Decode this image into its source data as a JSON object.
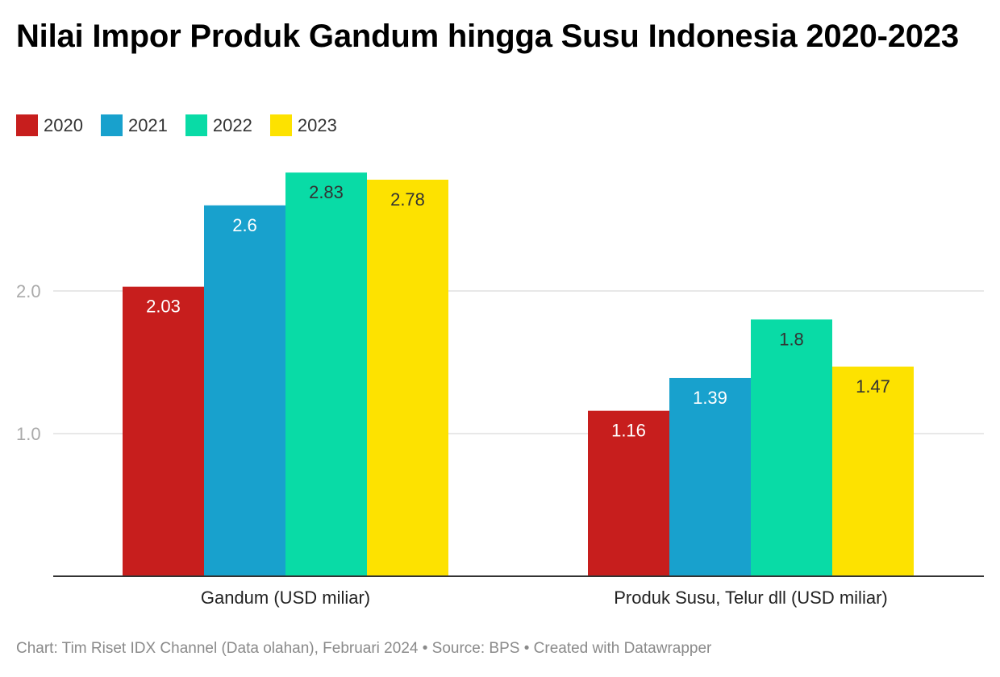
{
  "title": "Nilai Impor Produk Gandum hingga Susu Indonesia 2020-2023",
  "footer": "Chart: Tim Riset IDX Channel (Data olahan), Februari 2024 • Source: BPS • Created with Datawrapper",
  "colors": {
    "2020": "#c71e1d",
    "2021": "#18a1cd",
    "2022": "#09dba6",
    "2023": "#fde200",
    "gridline": "#e0e0e0",
    "baseline": "#333333",
    "tick_label": "#aaaaaa"
  },
  "chart_data": {
    "type": "bar",
    "categories": [
      "Gandum (USD miliar)",
      "Produk Susu, Telur dll (USD miliar)"
    ],
    "series": [
      {
        "name": "2020",
        "values": [
          2.03,
          1.16
        ],
        "color": "#c71e1d"
      },
      {
        "name": "2021",
        "values": [
          2.6,
          1.39
        ],
        "color": "#18a1cd"
      },
      {
        "name": "2022",
        "values": [
          2.83,
          1.8
        ],
        "color": "#09dba6"
      },
      {
        "name": "2023",
        "values": [
          2.78,
          1.47
        ],
        "color": "#fde200"
      }
    ],
    "data_labels": [
      [
        "2.03",
        "2.6",
        "2.83",
        "2.78"
      ],
      [
        "1.16",
        "1.39",
        "1.8",
        "1.47"
      ]
    ],
    "yticks": [
      "1.0",
      "2.0"
    ],
    "ytick_values": [
      1.0,
      2.0
    ],
    "ylim": [
      0,
      3.0
    ],
    "grid": true,
    "legend_position": "top-left"
  }
}
